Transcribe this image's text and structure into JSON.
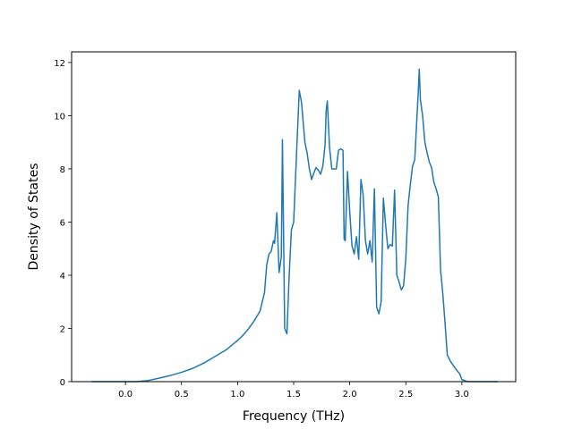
{
  "chart_data": {
    "type": "line",
    "title": "",
    "xlabel": "Frequency (THz)",
    "ylabel": "Density of States",
    "xlim": [
      -0.48,
      3.48
    ],
    "ylim": [
      0,
      12.4
    ],
    "xticks": [
      0.0,
      0.5,
      1.0,
      1.5,
      2.0,
      2.5,
      3.0
    ],
    "xtick_labels": [
      "0.0",
      "0.5",
      "1.0",
      "1.5",
      "2.0",
      "2.5",
      "3.0"
    ],
    "yticks": [
      0,
      2,
      4,
      6,
      8,
      10,
      12
    ],
    "ytick_labels": [
      "0",
      "2",
      "4",
      "6",
      "8",
      "10",
      "12"
    ],
    "grid": false,
    "legend": "none",
    "series": [
      {
        "color": "#1f77b4",
        "x": [
          -0.3,
          -0.1,
          0.1,
          0.2,
          0.3,
          0.4,
          0.5,
          0.6,
          0.7,
          0.8,
          0.9,
          1.0,
          1.05,
          1.1,
          1.15,
          1.2,
          1.22,
          1.24,
          1.26,
          1.28,
          1.3,
          1.32,
          1.33,
          1.35,
          1.37,
          1.39,
          1.4,
          1.42,
          1.44,
          1.46,
          1.48,
          1.5,
          1.53,
          1.55,
          1.57,
          1.6,
          1.62,
          1.64,
          1.66,
          1.68,
          1.7,
          1.72,
          1.74,
          1.76,
          1.78,
          1.79,
          1.8,
          1.82,
          1.84,
          1.86,
          1.88,
          1.9,
          1.92,
          1.94,
          1.95,
          1.96,
          1.98,
          2.0,
          2.02,
          2.04,
          2.06,
          2.08,
          2.1,
          2.12,
          2.14,
          2.16,
          2.18,
          2.2,
          2.22,
          2.24,
          2.26,
          2.28,
          2.3,
          2.32,
          2.34,
          2.36,
          2.38,
          2.4,
          2.42,
          2.44,
          2.46,
          2.48,
          2.5,
          2.52,
          2.54,
          2.56,
          2.58,
          2.6,
          2.61,
          2.62,
          2.63,
          2.65,
          2.67,
          2.69,
          2.71,
          2.73,
          2.75,
          2.77,
          2.79,
          2.81,
          2.83,
          2.85,
          2.87,
          2.9,
          2.95,
          2.98,
          3.0,
          3.05,
          3.1,
          3.2,
          3.32
        ],
        "y": [
          0,
          0,
          0,
          0.04,
          0.13,
          0.23,
          0.35,
          0.5,
          0.7,
          0.95,
          1.2,
          1.55,
          1.75,
          2.0,
          2.3,
          2.65,
          3.0,
          3.35,
          4.4,
          4.8,
          4.9,
          5.3,
          5.2,
          6.35,
          4.1,
          4.7,
          9.1,
          2.0,
          1.8,
          4.0,
          5.7,
          6.0,
          9.0,
          10.95,
          10.5,
          9.0,
          8.6,
          8.0,
          7.6,
          7.85,
          8.05,
          7.95,
          7.8,
          8.1,
          8.9,
          10.2,
          10.55,
          8.8,
          8.0,
          8.0,
          8.0,
          8.7,
          8.75,
          8.7,
          5.35,
          5.3,
          7.9,
          6.4,
          5.1,
          4.8,
          5.45,
          4.6,
          7.6,
          7.0,
          5.3,
          4.8,
          5.3,
          4.5,
          7.25,
          2.8,
          2.55,
          3.0,
          6.9,
          5.9,
          5.0,
          5.15,
          5.1,
          7.2,
          4.0,
          3.75,
          3.45,
          3.6,
          4.6,
          6.6,
          7.4,
          8.1,
          8.35,
          10.0,
          10.8,
          11.75,
          10.6,
          10.0,
          9.0,
          8.6,
          8.25,
          8.05,
          7.5,
          7.25,
          6.95,
          4.2,
          3.3,
          2.2,
          1.0,
          0.75,
          0.45,
          0.3,
          0.08,
          0,
          0,
          0,
          0
        ]
      }
    ]
  }
}
